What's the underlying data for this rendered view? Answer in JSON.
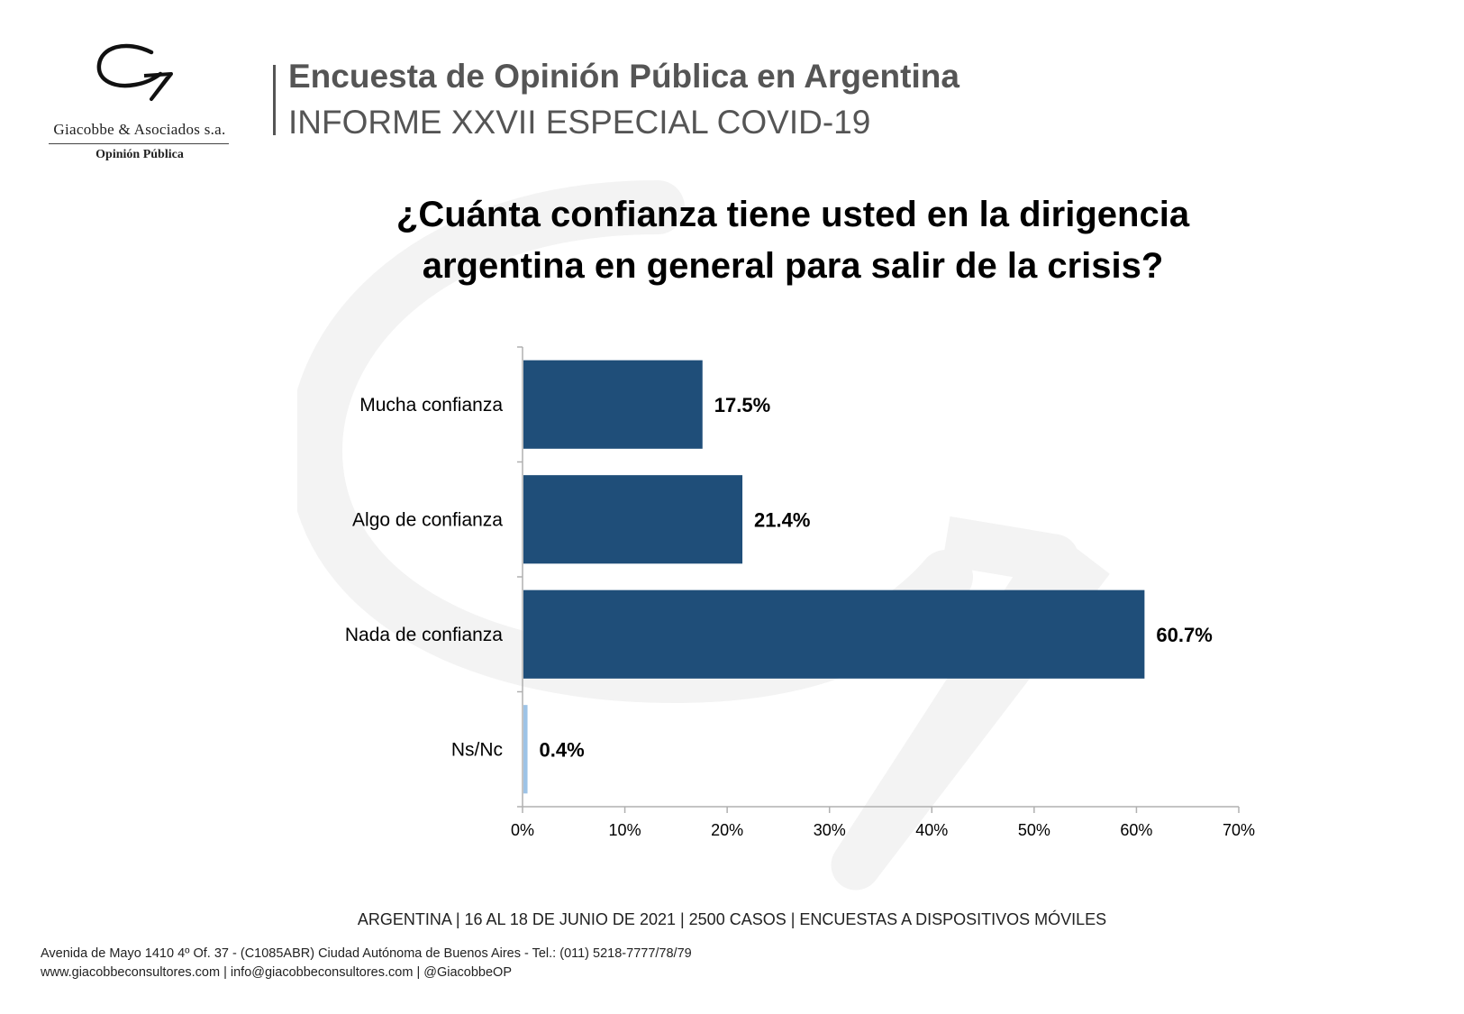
{
  "header": {
    "title": "Encuesta de Opinión Pública en Argentina",
    "subtitle": "INFORME XXVII ESPECIAL COVID-19"
  },
  "logo": {
    "name": "Giacobbe & Asociados s.a.",
    "tagline": "Opinión Pública"
  },
  "question": {
    "line1": "¿Cuánta confianza tiene usted en la dirigencia",
    "line2": "argentina en general para salir de la crisis?"
  },
  "chart_data": {
    "type": "bar",
    "orientation": "horizontal",
    "categories": [
      "Mucha confianza",
      "Algo de confianza",
      "Nada de confianza",
      "Ns/Nc"
    ],
    "values": [
      17.5,
      21.4,
      60.7,
      0.4
    ],
    "value_labels": [
      "17.5%",
      "21.4%",
      "60.7%",
      "0.4%"
    ],
    "xlim": [
      0,
      70
    ],
    "xticks": [
      0,
      10,
      20,
      30,
      40,
      50,
      60,
      70
    ],
    "xtick_labels": [
      "0%",
      "10%",
      "20%",
      "30%",
      "40%",
      "50%",
      "60%",
      "70%"
    ],
    "grid": false,
    "colors": [
      "#1f4e79",
      "#1f4e79",
      "#1f4e79",
      "#9dc3e6"
    ]
  },
  "footer": {
    "note": "ARGENTINA | 16 AL 18 DE JUNIO DE 2021 | 2500 CASOS | ENCUESTAS A DISPOSITIVOS MÓVILES",
    "address_line1": "Avenida de Mayo 1410 4º Of. 37 - (C1085ABR) Ciudad Autónoma de Buenos Aires - Tel.: (011) 5218-7777/78/79",
    "address_line2": "www.giacobbeconsultores.com | info@giacobbeconsultores.com | @GiacobbeOP"
  }
}
